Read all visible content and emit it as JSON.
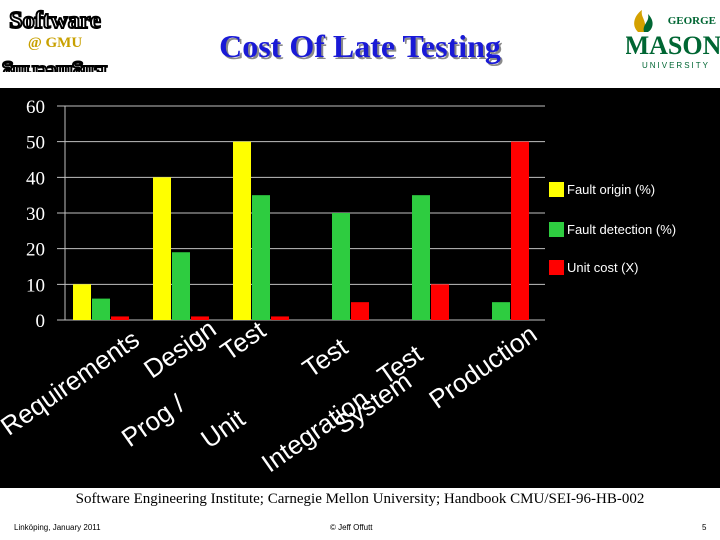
{
  "header": {
    "title": "Cost Of Late Testing",
    "logo_left": {
      "line1": "Software",
      "line2": "@ GMU",
      "line3": "Engineering"
    },
    "logo_right": {
      "line1": "GEORGE",
      "line2": "MASON",
      "line3": "UNIVERSITY"
    }
  },
  "chart_data": {
    "type": "bar",
    "categories": [
      "Requirements",
      "Prog / Design",
      "Unit Test",
      "Integration Test",
      "System Test",
      "Production"
    ],
    "series": [
      {
        "name": "Fault origin (%)",
        "values": [
          10,
          40,
          50,
          null,
          null,
          null
        ],
        "color": "#ffff00"
      },
      {
        "name": "Fault detection (%)",
        "values": [
          6,
          19,
          35,
          30,
          35,
          5
        ],
        "color": "#2ecc40"
      },
      {
        "name": "Unit cost (X)",
        "values": [
          1,
          1,
          1,
          5,
          10,
          50
        ],
        "color": "#ff0000"
      }
    ],
    "ylim": [
      0,
      60
    ],
    "yticks": [
      0,
      10,
      20,
      30,
      40,
      50,
      60
    ],
    "grid": true,
    "legend": "right",
    "category_labels": [
      {
        "lines": [
          "Requirements"
        ]
      },
      {
        "lines": [
          "Design",
          "Prog /"
        ]
      },
      {
        "lines": [
          "Test",
          "Unit"
        ]
      },
      {
        "lines": [
          "Test",
          "Integration"
        ]
      },
      {
        "lines": [
          "Test",
          "System"
        ]
      },
      {
        "lines": [
          "Production"
        ]
      }
    ]
  },
  "source_text": "Software Engineering Institute; Carnegie Mellon University; Handbook CMU/SEI-96-HB-002",
  "footer": {
    "left": "Linköping, January 2011",
    "center": "© Jeff Offutt",
    "page": "5"
  },
  "colors": {
    "title": "#1a1ad6",
    "panel": "#000000",
    "axis_text": "#ffffff"
  }
}
